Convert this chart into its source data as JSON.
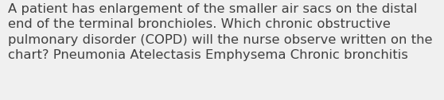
{
  "lines": [
    "A patient has enlargement of the smaller air sacs on the distal",
    "end of the terminal bronchioles. Which chronic obstructive",
    "pulmonary disorder (COPD) will the nurse observe written on the",
    "chart? Pneumonia Atelectasis Emphysema Chronic bronchitis"
  ],
  "background_color": "#f0f0f0",
  "text_color": "#404040",
  "font_size": 11.8,
  "fig_width": 5.58,
  "fig_height": 1.26,
  "dpi": 100
}
